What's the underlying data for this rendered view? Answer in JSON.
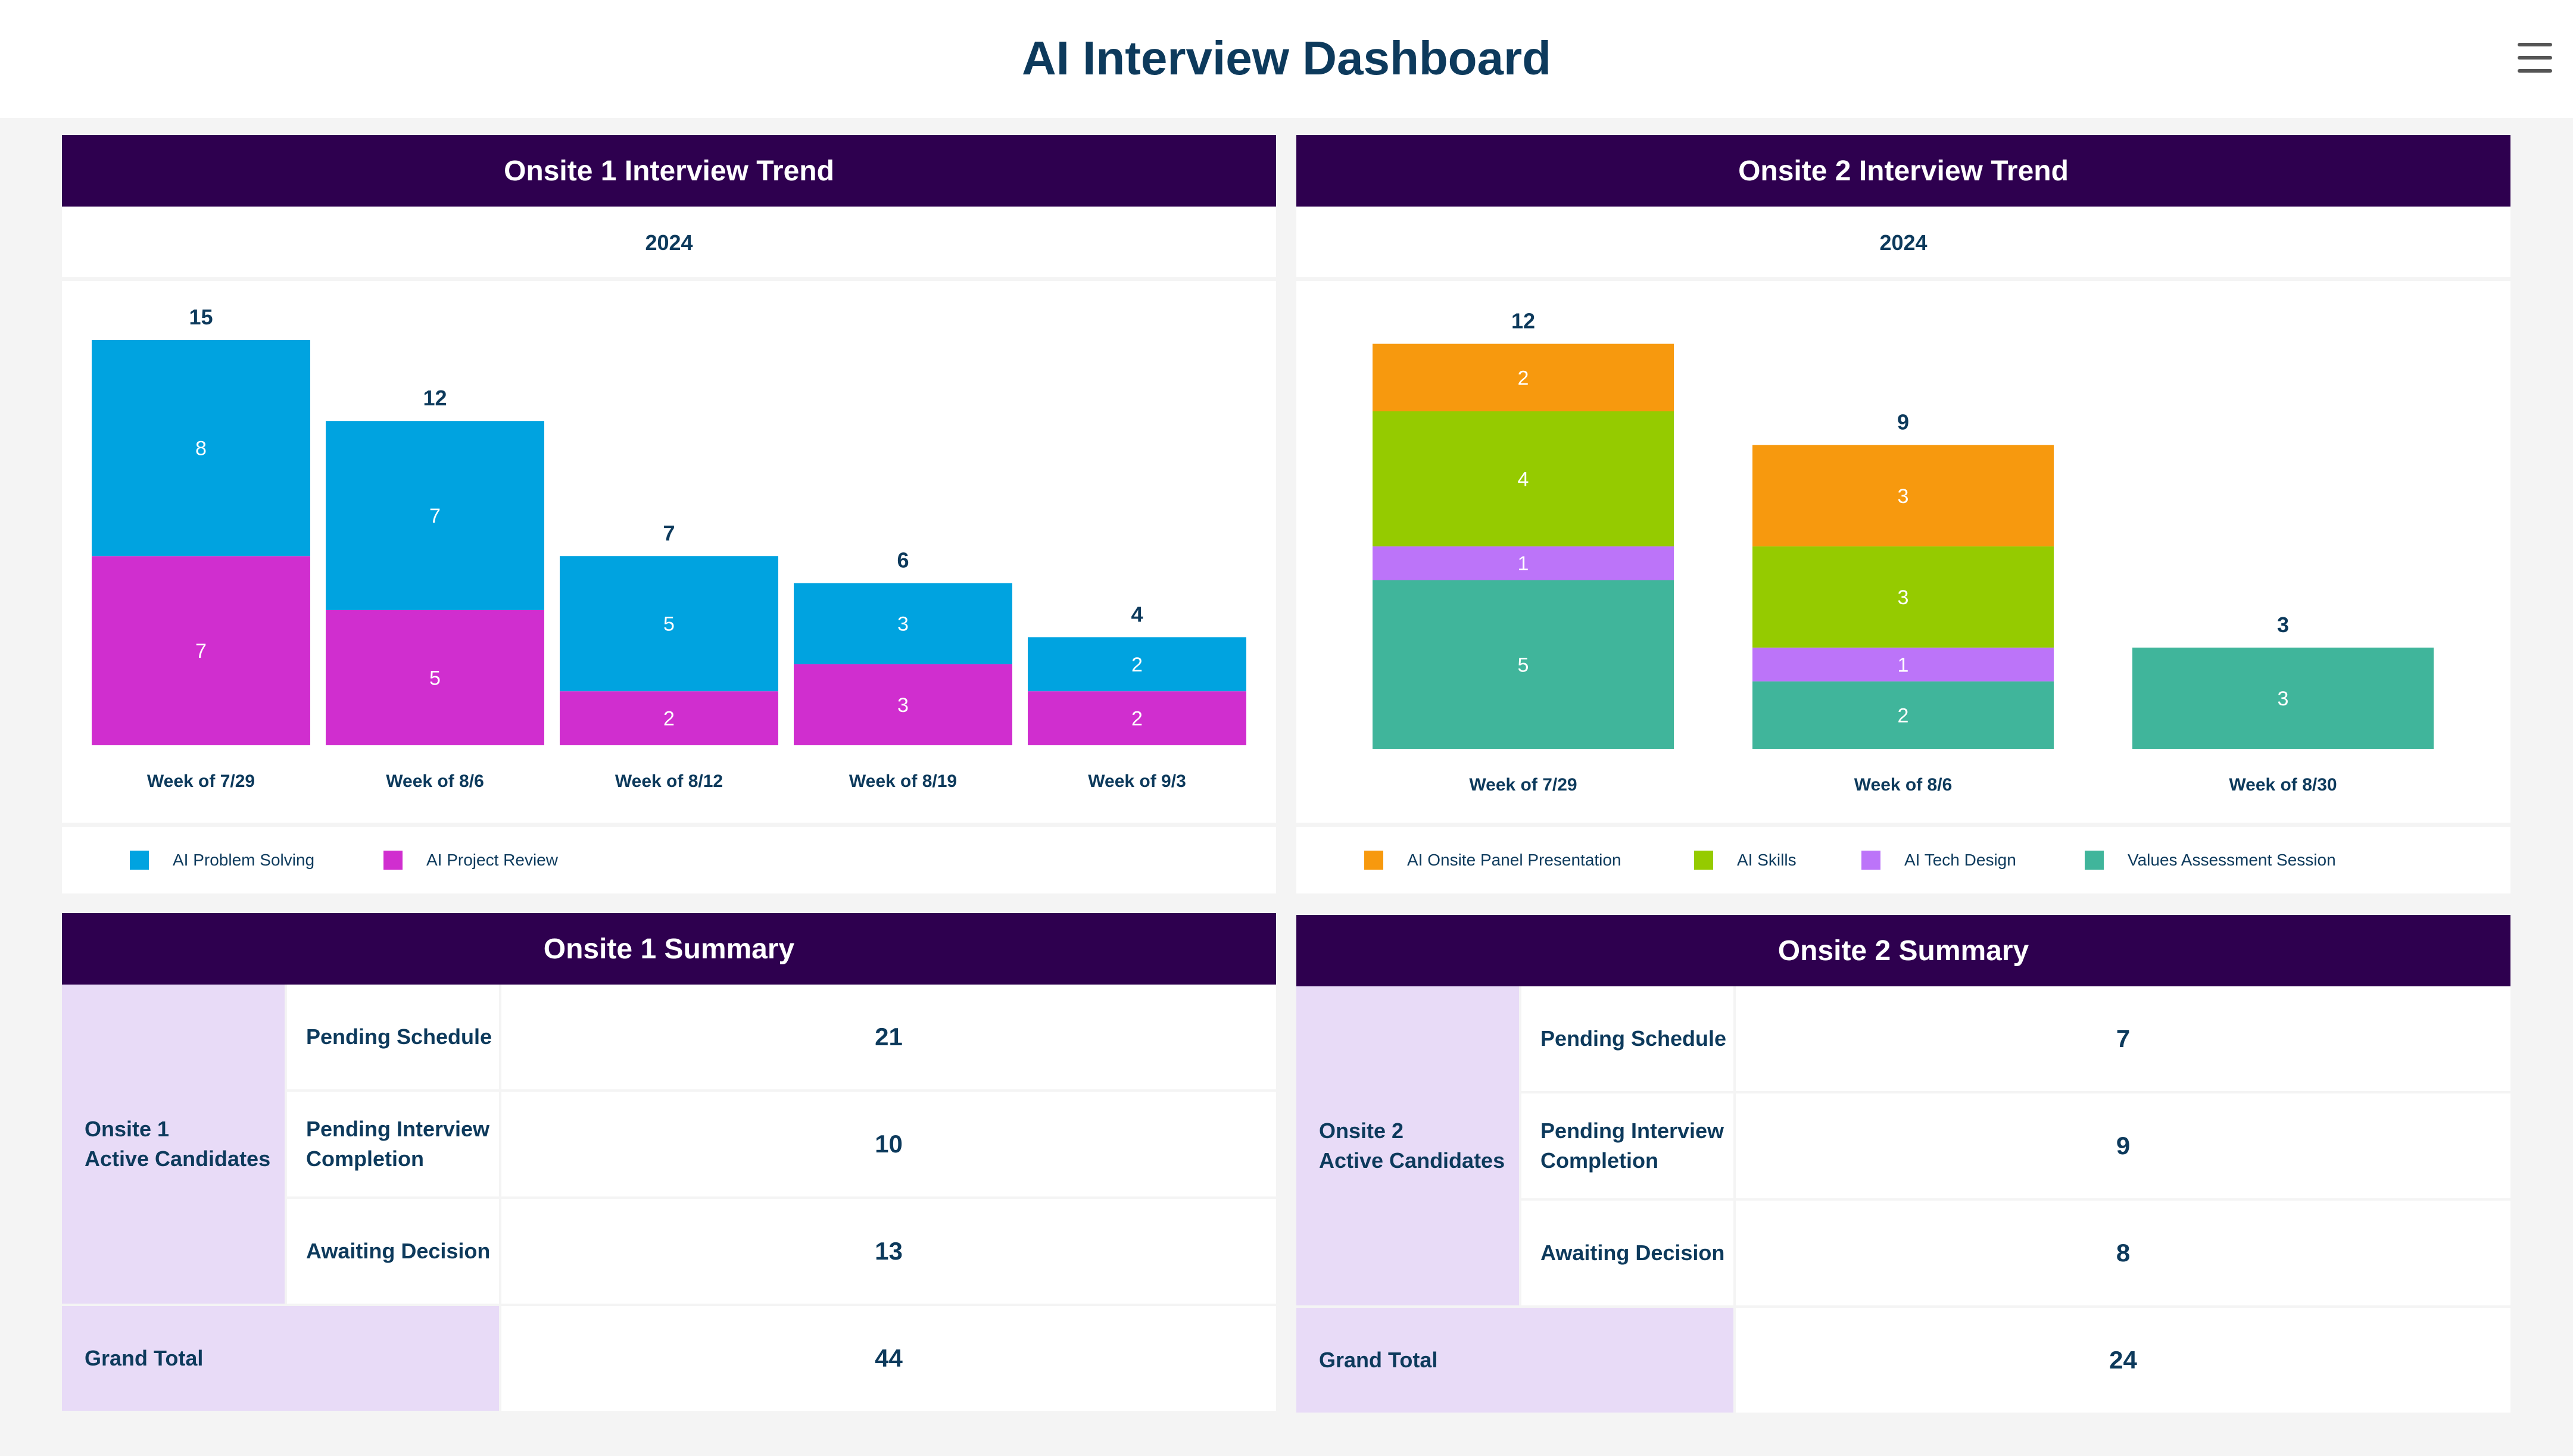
{
  "app": {
    "title": "AI Interview Dashboard"
  },
  "colors": {
    "header_bg": "#2e004f",
    "text": "#0d3a5c",
    "ai_problem_solving": "#00a3e0",
    "ai_project_review": "#d02ecf",
    "ai_onsite_panel_presentation": "#f7990e",
    "ai_skills": "#95cb00",
    "ai_tech_design": "#bc74f9",
    "values_assessment_session": "#40b59b",
    "summary_group_bg": "#e8dbf7"
  },
  "onsite1_chart": {
    "header": "Onsite 1 Interview Trend",
    "subtitle": "2024",
    "legend": [
      {
        "label": "AI Problem Solving",
        "color": "#00a3e0"
      },
      {
        "label": "AI Project Review",
        "color": "#d02ecf"
      }
    ]
  },
  "onsite2_chart": {
    "header": "Onsite 2 Interview Trend",
    "subtitle": "2024",
    "legend": [
      {
        "label": "AI Onsite Panel Presentation",
        "color": "#f7990e"
      },
      {
        "label": "AI Skills",
        "color": "#95cb00"
      },
      {
        "label": "AI Tech Design",
        "color": "#bc74f9"
      },
      {
        "label": "Values Assessment Session",
        "color": "#40b59b"
      }
    ]
  },
  "chart_data": [
    {
      "type": "bar",
      "stacked": true,
      "title": "Onsite 1 Interview Trend",
      "subtitle": "2024",
      "categories": [
        "Week of 7/29",
        "Week of 8/6",
        "Week of 8/12",
        "Week of 8/19",
        "Week of 9/3"
      ],
      "totals": [
        15,
        12,
        7,
        6,
        4
      ],
      "series": [
        {
          "name": "AI Project Review",
          "color": "#d02ecf",
          "values": [
            7,
            5,
            2,
            3,
            2
          ]
        },
        {
          "name": "AI Problem Solving",
          "color": "#00a3e0",
          "values": [
            8,
            7,
            5,
            3,
            2
          ]
        }
      ],
      "legend_position": "bottom-left",
      "grid": false
    },
    {
      "type": "bar",
      "stacked": true,
      "title": "Onsite 2 Interview Trend",
      "subtitle": "2024",
      "categories": [
        "Week of 7/29",
        "Week of 8/6",
        "Week of 8/30"
      ],
      "totals": [
        12,
        9,
        3
      ],
      "series": [
        {
          "name": "Values Assessment Session",
          "color": "#40b59b",
          "values": [
            5,
            2,
            3
          ]
        },
        {
          "name": "AI Tech Design",
          "color": "#bc74f9",
          "values": [
            1,
            1,
            0
          ]
        },
        {
          "name": "AI Skills",
          "color": "#95cb00",
          "values": [
            4,
            3,
            0
          ]
        },
        {
          "name": "AI Onsite Panel Presentation",
          "color": "#f7990e",
          "values": [
            2,
            3,
            0
          ]
        }
      ],
      "legend_position": "bottom-left",
      "grid": false
    }
  ],
  "onsite1_summary": {
    "header": "Onsite 1 Summary",
    "group_label_line1": "Onsite 1",
    "group_label_line2": "Active Candidates",
    "rows": [
      {
        "label": "Pending Schedule",
        "value": "21"
      },
      {
        "label_line1": "Pending Interview",
        "label_line2": "Completion",
        "value": "10"
      },
      {
        "label": "Awaiting Decision",
        "value": "13"
      }
    ],
    "grand_total_label": "Grand Total",
    "grand_total_value": "44"
  },
  "onsite2_summary": {
    "header": "Onsite 2 Summary",
    "group_label_line1": "Onsite 2",
    "group_label_line2": "Active Candidates",
    "rows": [
      {
        "label": "Pending Schedule",
        "value": "7"
      },
      {
        "label_line1": "Pending Interview",
        "label_line2": "Completion",
        "value": "9"
      },
      {
        "label": "Awaiting Decision",
        "value": "8"
      }
    ],
    "grand_total_label": "Grand Total",
    "grand_total_value": "24"
  }
}
